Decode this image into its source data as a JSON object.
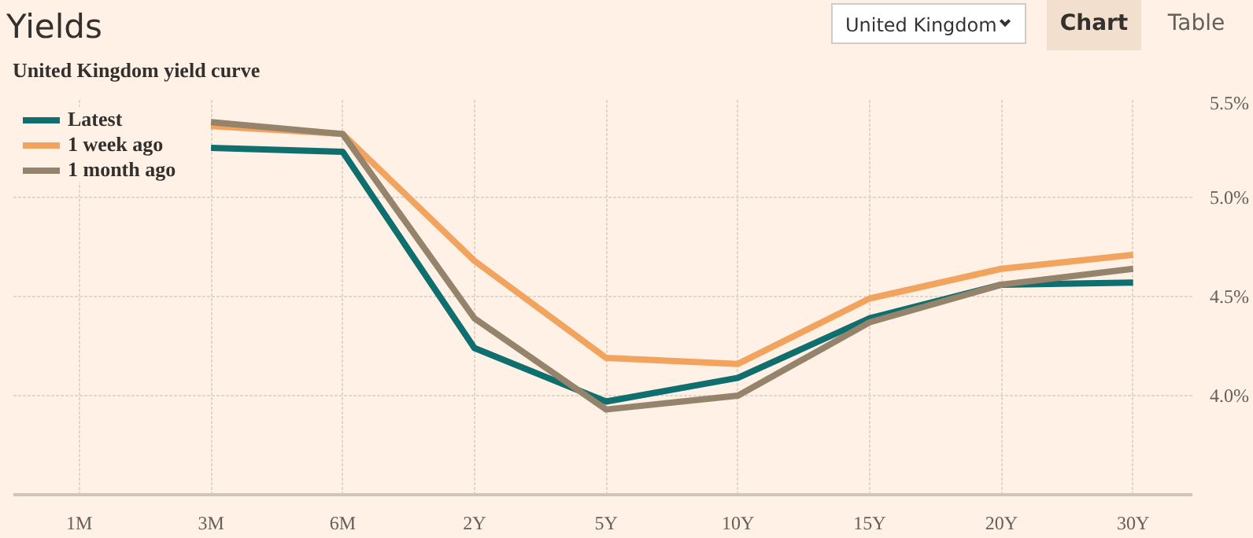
{
  "chart_data": {
    "type": "line",
    "title": "Yields",
    "subtitle": "United Kingdom yield curve",
    "annotations": [
      "United Kingdom",
      "Chart",
      "Table"
    ],
    "categories": [
      "1M",
      "3M",
      "6M",
      "2Y",
      "5Y",
      "10Y",
      "15Y",
      "20Y",
      "30Y"
    ],
    "series": [
      {
        "name": "Latest",
        "color": "#0f6e6e",
        "values": [
          null,
          5.25,
          5.23,
          4.24,
          3.97,
          4.09,
          4.39,
          4.56,
          4.57
        ]
      },
      {
        "name": "1 week ago",
        "color": "#f2a35e",
        "values": [
          null,
          5.36,
          5.32,
          4.68,
          4.19,
          4.16,
          4.49,
          4.64,
          4.71
        ]
      },
      {
        "name": "1 month ago",
        "color": "#96836b",
        "values": [
          null,
          5.38,
          5.32,
          4.39,
          3.93,
          4.0,
          4.37,
          4.56,
          4.64
        ]
      }
    ],
    "ylim": [
      3.5,
      5.5
    ],
    "yticks": [
      {
        "value": 3.5,
        "label": null
      },
      {
        "value": 4.0,
        "label": "4.0%"
      },
      {
        "value": 4.5,
        "label": "4.5%"
      },
      {
        "value": 5.0,
        "label": "5.0%"
      },
      {
        "value": 5.5,
        "label": "5.5%"
      }
    ],
    "grid": true,
    "legend": "top left",
    "marker": "none",
    "line_style": "solid"
  }
}
